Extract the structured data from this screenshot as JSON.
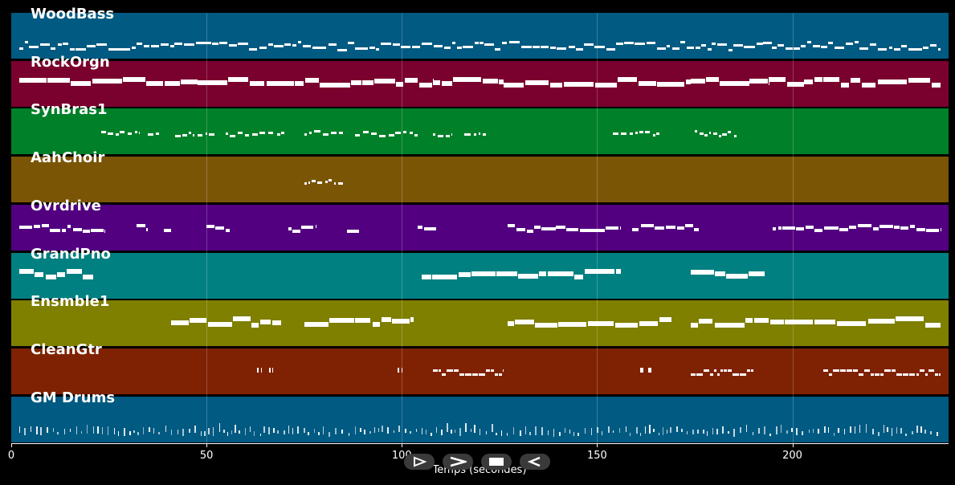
{
  "colors": {
    "background": "#000000",
    "note": "#ffffff"
  },
  "tracks": [
    {
      "name": "WoodBass",
      "color": "#005a82"
    },
    {
      "name": "RockOrgn",
      "color": "#7a002e"
    },
    {
      "name": "SynBras1",
      "color": "#008028"
    },
    {
      "name": "AahChoir",
      "color": "#7a5506"
    },
    {
      "name": "Ovrdrive",
      "color": "#520080"
    },
    {
      "name": "GrandPno",
      "color": "#008080"
    },
    {
      "name": "Ensmble1",
      "color": "#7f7f00"
    },
    {
      "name": "CleanGtr",
      "color": "#7f2204"
    },
    {
      "name": "GM Drums",
      "color": "#005a82"
    }
  ],
  "axis": {
    "ticks": [
      0,
      50,
      100,
      150,
      200
    ],
    "range": [
      0,
      240
    ],
    "label": "Temps (secondes)"
  },
  "controls": [
    {
      "name": "play-icon"
    },
    {
      "name": "fast-forward-icon"
    },
    {
      "name": "stop-icon"
    },
    {
      "name": "rewind-icon"
    }
  ],
  "note_segments": [
    {
      "track": 0,
      "segments": [
        [
          2,
          238,
          "dense-thin"
        ]
      ]
    },
    {
      "track": 1,
      "segments": [
        [
          2,
          108,
          "thick"
        ],
        [
          108,
          126,
          "thick"
        ],
        [
          126,
          174,
          "thick"
        ],
        [
          174,
          194,
          "thick"
        ],
        [
          194,
          238,
          "thick"
        ]
      ]
    },
    {
      "track": 2,
      "segments": [
        [
          23,
          33,
          "sparse"
        ],
        [
          35,
          38,
          "sparse"
        ],
        [
          42,
          52,
          "sparse"
        ],
        [
          55,
          67,
          "sparse"
        ],
        [
          68,
          70,
          "sparse"
        ],
        [
          75,
          85,
          "sparse"
        ],
        [
          88,
          104,
          "sparse"
        ],
        [
          108,
          113,
          "sparse"
        ],
        [
          116,
          122,
          "sparse"
        ],
        [
          154,
          166,
          "sparse"
        ],
        [
          175,
          186,
          "sparse"
        ]
      ]
    },
    {
      "track": 3,
      "segments": [
        [
          75,
          85,
          "sparse"
        ]
      ]
    },
    {
      "track": 4,
      "segments": [
        [
          2,
          24,
          "medium"
        ],
        [
          32,
          35,
          "medium"
        ],
        [
          39,
          41,
          "medium"
        ],
        [
          50,
          56,
          "medium"
        ],
        [
          71,
          78,
          "medium"
        ],
        [
          86,
          89,
          "medium"
        ],
        [
          104,
          109,
          "medium"
        ],
        [
          127,
          156,
          "medium"
        ],
        [
          159,
          176,
          "medium"
        ],
        [
          195,
          238,
          "medium"
        ]
      ]
    },
    {
      "track": 5,
      "segments": [
        [
          2,
          21,
          "thick"
        ],
        [
          105,
          156,
          "thick"
        ],
        [
          174,
          193,
          "thick"
        ]
      ]
    },
    {
      "track": 6,
      "segments": [
        [
          41,
          69,
          "thick"
        ],
        [
          75,
          103,
          "thick"
        ],
        [
          127,
          169,
          "thick"
        ],
        [
          174,
          238,
          "thick"
        ]
      ]
    },
    {
      "track": 7,
      "segments": [
        [
          63,
          64,
          "tick"
        ],
        [
          66,
          67,
          "tick"
        ],
        [
          99,
          100,
          "tick"
        ],
        [
          108,
          126,
          "double"
        ],
        [
          161,
          162,
          "tick"
        ],
        [
          163,
          164,
          "tick"
        ],
        [
          174,
          190,
          "double"
        ],
        [
          208,
          238,
          "double"
        ]
      ]
    },
    {
      "track": 8,
      "segments": [
        [
          2,
          238,
          "drums"
        ]
      ]
    }
  ]
}
